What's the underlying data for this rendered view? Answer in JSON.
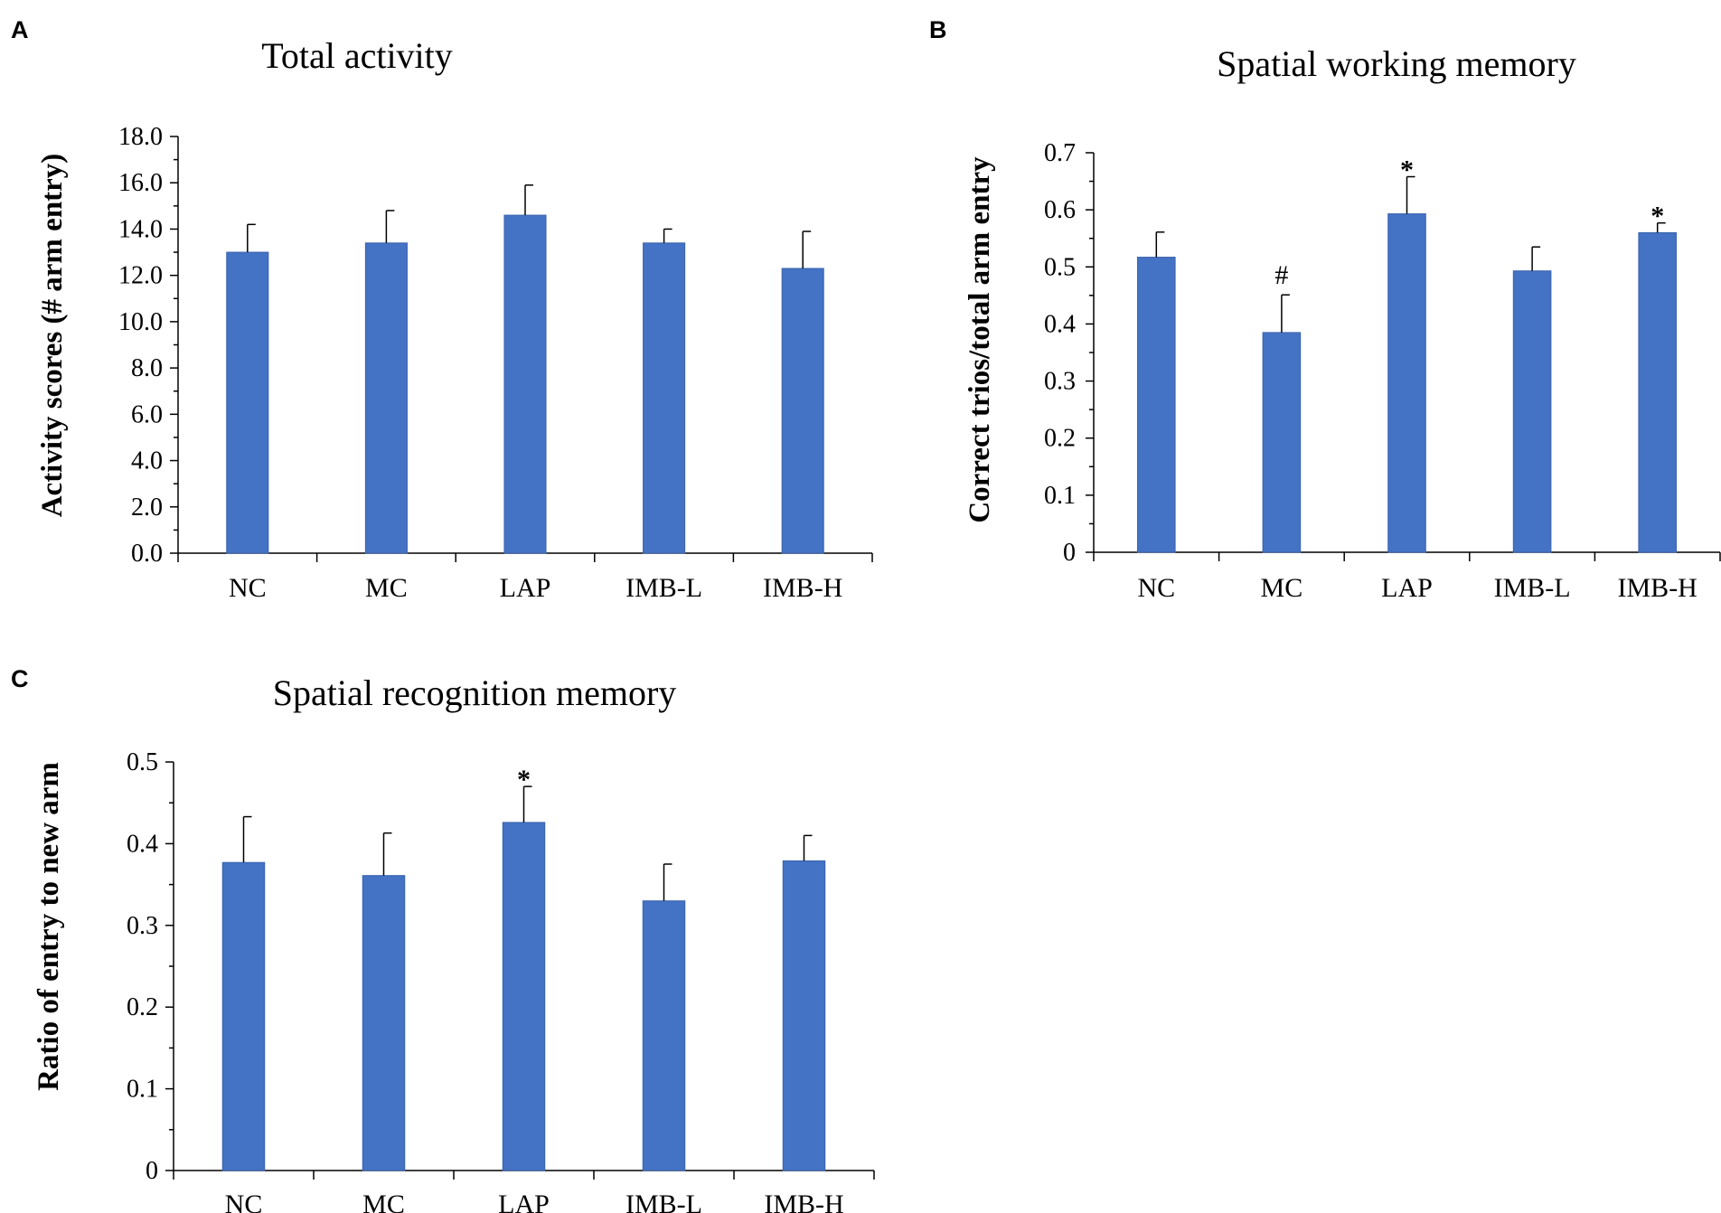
{
  "chart_data": [
    {
      "panel": "A",
      "type": "bar",
      "title": "Total activity",
      "xlabel": "",
      "ylabel": "Activity scores (# arm entry)",
      "categories": [
        "NC",
        "MC",
        "LAP",
        "IMB-L",
        "IMB-H"
      ],
      "values": [
        13.0,
        13.4,
        14.6,
        13.4,
        12.3
      ],
      "errors": [
        1.2,
        1.4,
        1.3,
        0.6,
        1.6
      ],
      "annotations": [
        "",
        "",
        "",
        "",
        ""
      ],
      "ylim": [
        0,
        18
      ],
      "ytick_step": 2,
      "ytick_decimals": 1,
      "yticks": [
        "0.0",
        "2.0",
        "4.0",
        "6.0",
        "8.0",
        "10.0",
        "12.0",
        "14.0",
        "16.0",
        "18.0"
      ],
      "color": "#4472C4"
    },
    {
      "panel": "B",
      "type": "bar",
      "title": "Spatial working memory",
      "xlabel": "",
      "ylabel": "Correct trios/total arm entry",
      "categories": [
        "NC",
        "MC",
        "LAP",
        "IMB-L",
        "IMB-H"
      ],
      "values": [
        0.517,
        0.385,
        0.593,
        0.493,
        0.56
      ],
      "errors": [
        0.044,
        0.066,
        0.065,
        0.042,
        0.017
      ],
      "annotations": [
        "",
        "#",
        "*",
        "",
        "*"
      ],
      "ylim": [
        0,
        0.7
      ],
      "ytick_step": 0.1,
      "ytick_decimals": 1,
      "yticks": [
        "0",
        "0.1",
        "0.2",
        "0.3",
        "0.4",
        "0.5",
        "0.6",
        "0.7"
      ],
      "color": "#4472C4"
    },
    {
      "panel": "C",
      "type": "bar",
      "title": "Spatial recognition memory",
      "xlabel": "",
      "ylabel": "Ratio of entry to new arm",
      "categories": [
        "NC",
        "MC",
        "LAP",
        "IMB-L",
        "IMB-H"
      ],
      "values": [
        0.377,
        0.361,
        0.426,
        0.33,
        0.379
      ],
      "errors": [
        0.056,
        0.052,
        0.044,
        0.045,
        0.031
      ],
      "annotations": [
        "",
        "",
        "*",
        "",
        ""
      ],
      "ylim": [
        0,
        0.5
      ],
      "ytick_step": 0.1,
      "ytick_decimals": 1,
      "yticks": [
        "0",
        "0.1",
        "0.2",
        "0.3",
        "0.4",
        "0.5"
      ],
      "color": "#4472C4"
    }
  ]
}
